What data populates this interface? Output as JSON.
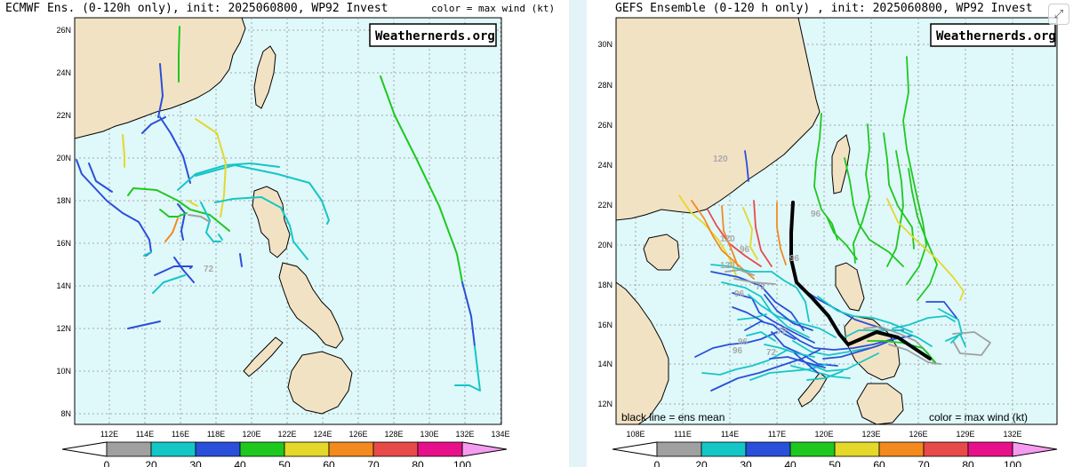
{
  "left": {
    "title": "ECMWF Ens. (0-120h only), init: 2025060800, WP92 Invest",
    "color_note": "color = max wind (kt)",
    "watermark": "Weathernerds.org",
    "lon_labels": [
      "112E",
      "114E",
      "116E",
      "118E",
      "120E",
      "122E",
      "124E",
      "126E",
      "128E",
      "130E",
      "132E",
      "134E"
    ],
    "lat_labels": [
      "26N",
      "24N",
      "22N",
      "20N",
      "18N",
      "16N",
      "14N",
      "12N",
      "10N",
      "8N"
    ],
    "track_labels": [
      "72"
    ],
    "colorbar": [
      "0",
      "20",
      "30",
      "40",
      "50",
      "60",
      "70",
      "80",
      "100"
    ]
  },
  "right": {
    "title": "GEFS Ensemble (0-120 h only) , init: 2025060800, WP92 Invest",
    "watermark": "Weathernerds.org",
    "legend_left": "black line = ens mean",
    "legend_right": "color = max wind (kt)",
    "lon_labels": [
      "108E",
      "111E",
      "114E",
      "117E",
      "120E",
      "123E",
      "126E",
      "129E",
      "132E"
    ],
    "lat_labels": [
      "30N",
      "28N",
      "26N",
      "24N",
      "22N",
      "20N",
      "18N",
      "16N",
      "14N",
      "12N"
    ],
    "track_labels": [
      "120",
      "96",
      "120",
      "96",
      "120",
      "96",
      "72",
      "96",
      "72",
      "96",
      "72",
      "96"
    ],
    "colorbar": [
      "0",
      "20",
      "30",
      "40",
      "50",
      "60",
      "70",
      "80",
      "100"
    ]
  },
  "colors": {
    "ocean": "#dff8fa",
    "land": "#f2e2c4",
    "grid": "#909090",
    "wind_scale": [
      "#ffffff",
      "#a0a0a0",
      "#15c6c6",
      "#2a4fd8",
      "#1ec81e",
      "#e4d82a",
      "#f28a1e",
      "#e84a4a",
      "#e8108a",
      "#f59cf0"
    ]
  }
}
